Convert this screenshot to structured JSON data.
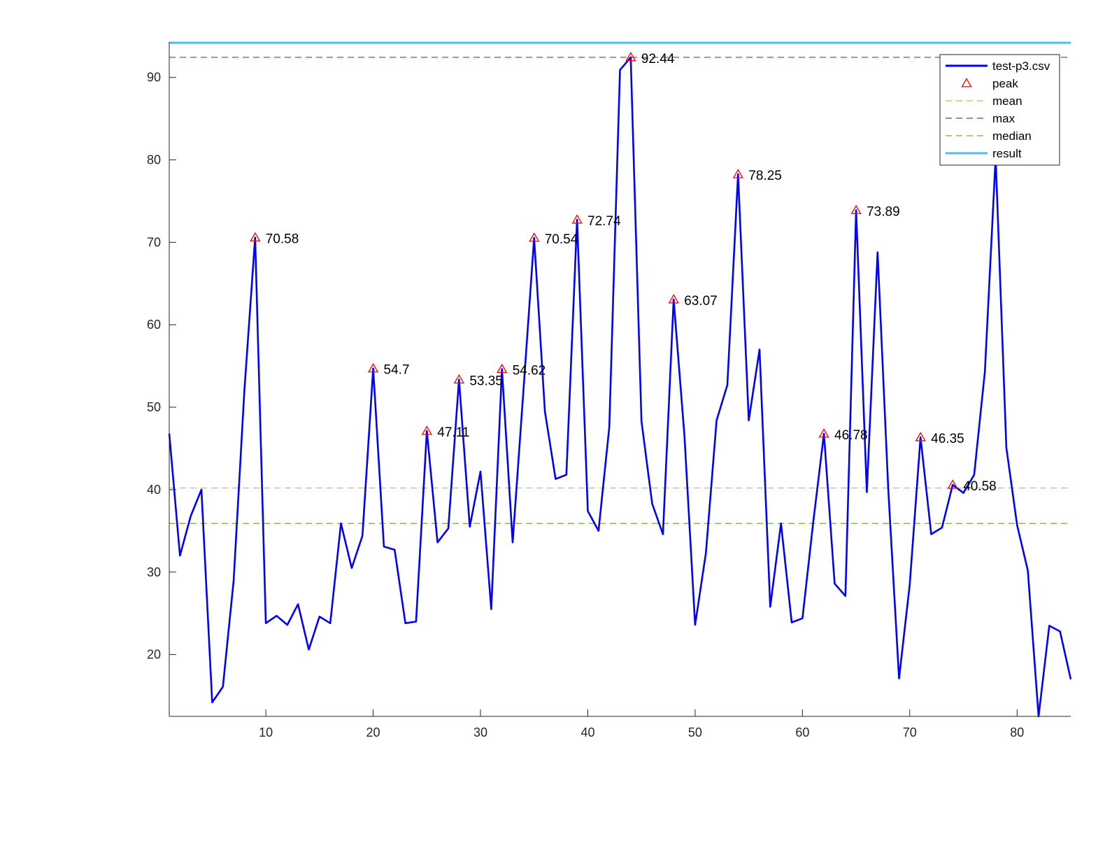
{
  "chart_data": {
    "type": "line",
    "xlim": [
      1,
      85
    ],
    "ylim": [
      12.5,
      94.3
    ],
    "x_ticks": [
      10,
      20,
      30,
      40,
      50,
      60,
      70,
      80
    ],
    "y_ticks": [
      20,
      30,
      40,
      50,
      60,
      70,
      80,
      90
    ],
    "grid": false,
    "legend_position": "top-right",
    "series": [
      {
        "name": "test-p3.csv",
        "color": "#0000ff",
        "x": [
          1,
          2,
          3,
          4,
          5,
          6,
          7,
          8,
          9,
          10,
          11,
          12,
          13,
          14,
          15,
          16,
          17,
          18,
          19,
          20,
          21,
          22,
          23,
          24,
          25,
          26,
          27,
          28,
          29,
          30,
          31,
          32,
          33,
          34,
          35,
          36,
          37,
          38,
          39,
          40,
          41,
          42,
          43,
          44,
          45,
          46,
          47,
          48,
          49,
          50,
          51,
          52,
          53,
          54,
          55,
          56,
          57,
          58,
          59,
          60,
          61,
          62,
          63,
          64,
          65,
          66,
          67,
          68,
          69,
          70,
          71,
          72,
          73,
          74,
          75,
          76,
          77,
          78,
          79,
          80,
          81,
          82,
          83,
          84,
          85
        ],
        "y": [
          46.8,
          32.0,
          36.8,
          40.0,
          14.2,
          16.1,
          29.0,
          52.0,
          70.58,
          23.8,
          24.7,
          23.6,
          26.1,
          20.6,
          24.6,
          23.8,
          35.9,
          30.5,
          34.4,
          54.7,
          33.1,
          32.7,
          23.8,
          24.0,
          47.11,
          33.6,
          35.3,
          53.35,
          35.5,
          42.2,
          25.5,
          54.62,
          33.6,
          52.0,
          70.54,
          49.5,
          41.3,
          41.8,
          72.74,
          37.4,
          35.0,
          47.6,
          90.9,
          92.44,
          48.3,
          38.3,
          34.6,
          63.07,
          46.6,
          23.6,
          32.3,
          48.4,
          52.7,
          78.25,
          48.4,
          57.0,
          25.8,
          35.9,
          23.9,
          24.4,
          36.0,
          46.78,
          28.6,
          27.1,
          73.89,
          39.7,
          68.8,
          40.0,
          17.1,
          28.5,
          46.35,
          34.6,
          35.4,
          40.58,
          39.6,
          41.8,
          54.3,
          80.3,
          45.1,
          35.7,
          30.2,
          12.5,
          23.5,
          22.8,
          17.0
        ]
      }
    ],
    "peaks": {
      "name": "peak",
      "color": "#ff0000",
      "x": [
        9,
        20,
        25,
        28,
        32,
        35,
        39,
        44,
        48,
        54,
        62,
        65,
        71,
        74
      ],
      "y": [
        70.58,
        54.7,
        47.11,
        53.35,
        54.62,
        70.54,
        72.74,
        92.44,
        63.07,
        78.25,
        46.78,
        73.89,
        46.35,
        40.58
      ],
      "labels": [
        "70.58",
        "54.7",
        "47.11",
        "53.35",
        "54.62",
        "70.54",
        "72.74",
        "92.44",
        "63.07",
        "78.25",
        "46.78",
        "73.89",
        "46.35",
        "40.58"
      ]
    },
    "reference_lines": [
      {
        "name": "mean",
        "value": 40.2,
        "color": "#edb120",
        "style": "dashed"
      },
      {
        "name": "max",
        "value": 92.44,
        "color": "#7e2f8e",
        "style": "dashed"
      },
      {
        "name": "median",
        "value": 35.9,
        "color": "#77ac30",
        "style": "dashed"
      },
      {
        "name": "result",
        "value": 94.2,
        "color": "#4dbeee",
        "style": "solid"
      }
    ],
    "legend": [
      "test-p3.csv",
      "peak",
      "mean",
      "max",
      "median",
      "result"
    ]
  }
}
